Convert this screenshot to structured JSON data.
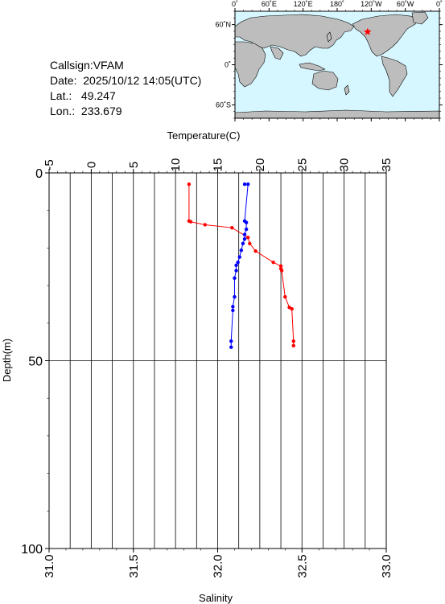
{
  "station": {
    "callsign_label": "Callsign:",
    "callsign": "VFAM",
    "date_label": "Date:",
    "date": "2025/10/12 14:05(UTC)",
    "lat_label": "Lat.:",
    "lat": "49.247",
    "lon_label": "Lon.:",
    "lon": "233.679"
  },
  "map": {
    "lon_labels": [
      "0˚",
      "60˚E",
      "120˚E",
      "180˚",
      "120˚W",
      "60˚W",
      "0˚"
    ],
    "lat_labels": [
      "60˚N",
      "0˚",
      "60˚S"
    ],
    "ocean_color": "#d6f7ff",
    "land_color": "#bdbdbd",
    "marker_color": "#ff0000",
    "station_lon": 233.679,
    "station_lat": 49.247
  },
  "chart_data": {
    "type": "line",
    "title": "",
    "top_axis_label": "Temperature(C)",
    "bottom_axis_label": "Salinity",
    "ylabel": "Depth(m)",
    "temperature_range": [
      -5,
      35
    ],
    "temperature_ticks": [
      "-5",
      "0",
      "5",
      "10",
      "15",
      "20",
      "25",
      "30",
      "35"
    ],
    "salinity_range": [
      31.0,
      33.0
    ],
    "salinity_ticks": [
      "31.0",
      "31.5",
      "32.0",
      "32.5",
      "33.0"
    ],
    "depth_range": [
      0,
      100
    ],
    "depth_ticks": [
      "0",
      "50",
      "100"
    ],
    "grid": true,
    "series": [
      {
        "color": "#ff0000",
        "axis": "temperature",
        "points": [
          [
            11.6,
            3.0
          ],
          [
            11.6,
            12.8
          ],
          [
            11.8,
            13.0
          ],
          [
            13.5,
            13.8
          ],
          [
            16.7,
            14.6
          ],
          [
            18.6,
            17.2
          ],
          [
            18.8,
            18.8
          ],
          [
            19.5,
            20.8
          ],
          [
            21.6,
            23.8
          ],
          [
            22.5,
            24.8
          ],
          [
            22.5,
            25.5
          ],
          [
            22.6,
            26.0
          ],
          [
            23.0,
            33.0
          ],
          [
            23.5,
            35.8
          ],
          [
            23.8,
            36.2
          ],
          [
            24.0,
            44.8
          ],
          [
            24.0,
            46.0
          ]
        ]
      },
      {
        "color": "#0000ff",
        "axis": "salinity",
        "points": [
          [
            32.16,
            3.0
          ],
          [
            32.18,
            3.0
          ],
          [
            32.16,
            12.8
          ],
          [
            32.17,
            13.2
          ],
          [
            32.17,
            15.0
          ],
          [
            32.16,
            16.4
          ],
          [
            32.16,
            17.6
          ],
          [
            32.15,
            18.8
          ],
          [
            32.14,
            20.6
          ],
          [
            32.13,
            22.4
          ],
          [
            32.12,
            23.8
          ],
          [
            32.11,
            24.6
          ],
          [
            32.11,
            26.0
          ],
          [
            32.1,
            28.0
          ],
          [
            32.1,
            33.0
          ],
          [
            32.09,
            35.6
          ],
          [
            32.09,
            36.6
          ],
          [
            32.08,
            44.8
          ],
          [
            32.08,
            46.4
          ]
        ]
      }
    ]
  }
}
